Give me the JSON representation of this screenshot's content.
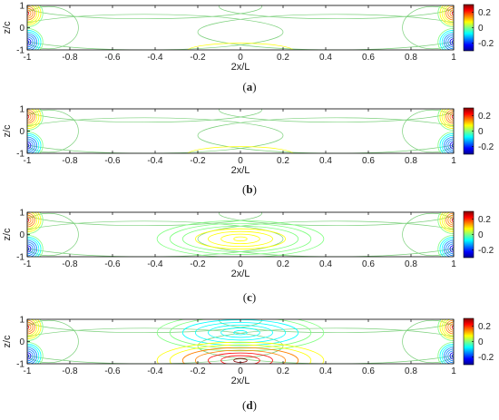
{
  "panels": [
    {
      "caption_letter": "a",
      "chart_data": {
        "type": "heatmap",
        "style": "contour lines",
        "xlabel": "2x/L",
        "ylabel": "z/c",
        "xlim": [
          -1,
          1
        ],
        "ylim": [
          -1,
          1
        ],
        "x_ticks": [
          "-1",
          "-0.8",
          "-0.6",
          "-0.4",
          "-0.2",
          "0",
          "0.2",
          "0.4",
          "0.6",
          "0.8",
          "1"
        ],
        "y_ticks": [
          "-1",
          "0",
          "1"
        ],
        "colorbar": {
          "ticks": [
            "0.2",
            "0",
            "-0.2"
          ],
          "range": [
            -0.3,
            0.3
          ]
        },
        "contours": [
          {
            "kind": "strong",
            "x": -1,
            "z": 0.65,
            "value": 0.2
          },
          {
            "kind": "strong",
            "x": -1,
            "z": -0.65,
            "value": -0.25
          },
          {
            "kind": "strong",
            "x": 1,
            "z": 0.65,
            "value": 0.2
          },
          {
            "kind": "strong",
            "x": 1,
            "z": -0.65,
            "value": -0.25
          },
          {
            "kind": "weak",
            "x": 0,
            "value": 0.0
          }
        ]
      }
    },
    {
      "caption_letter": "b",
      "chart_data": {
        "type": "heatmap",
        "style": "contour lines",
        "xlabel": "2x/L",
        "ylabel": "z/c",
        "xlim": [
          -1,
          1
        ],
        "ylim": [
          -1,
          1
        ],
        "x_ticks": [
          "-1",
          "-0.8",
          "-0.6",
          "-0.4",
          "-0.2",
          "0",
          "0.2",
          "0.4",
          "0.6",
          "0.8",
          "1"
        ],
        "y_ticks": [
          "-1",
          "0",
          "1"
        ],
        "colorbar": {
          "ticks": [
            "0.2",
            "0",
            "-0.2"
          ],
          "range": [
            -0.3,
            0.3
          ]
        },
        "contours": [
          {
            "kind": "strong",
            "x": -1,
            "z": 0.65,
            "value": 0.2
          },
          {
            "kind": "strong",
            "x": -1,
            "z": -0.65,
            "value": -0.25
          },
          {
            "kind": "strong",
            "x": 1,
            "z": 0.65,
            "value": 0.2
          },
          {
            "kind": "strong",
            "x": 1,
            "z": -0.65,
            "value": -0.25
          },
          {
            "kind": "weak",
            "x": 0,
            "value": 0.02
          }
        ]
      }
    },
    {
      "caption_letter": "c",
      "chart_data": {
        "type": "heatmap",
        "style": "contour lines",
        "xlabel": "2x/L",
        "ylabel": "z/c",
        "xlim": [
          -1,
          1
        ],
        "ylim": [
          -1,
          1
        ],
        "x_ticks": [
          "-1",
          "-0.8",
          "-0.6",
          "-0.4",
          "-0.2",
          "0",
          "0.2",
          "0.4",
          "0.6",
          "0.8",
          "1"
        ],
        "y_ticks": [
          "-1",
          "0",
          "1"
        ],
        "colorbar": {
          "ticks": [
            "0.2",
            "0",
            "-0.2"
          ],
          "range": [
            -0.3,
            0.3
          ]
        },
        "contours": [
          {
            "kind": "strong",
            "x": -1,
            "z": 0.65,
            "value": 0.2
          },
          {
            "kind": "strong",
            "x": -1,
            "z": -0.65,
            "value": -0.25
          },
          {
            "kind": "strong",
            "x": 1,
            "z": 0.65,
            "value": 0.2
          },
          {
            "kind": "strong",
            "x": 1,
            "z": -0.65,
            "value": -0.25
          },
          {
            "kind": "center",
            "x": 0,
            "z": -0.2,
            "value": 0.08
          }
        ]
      }
    },
    {
      "caption_letter": "d",
      "chart_data": {
        "type": "heatmap",
        "style": "contour lines",
        "xlabel": "2x/L",
        "ylabel": "z/c",
        "xlim": [
          -1,
          1
        ],
        "ylim": [
          -1,
          1
        ],
        "x_ticks": [
          "-1",
          "-0.8",
          "-0.6",
          "-0.4",
          "-0.2",
          "0",
          "0.2",
          "0.4",
          "0.6",
          "0.8",
          "1"
        ],
        "y_ticks": [
          "-1",
          "0",
          "1"
        ],
        "colorbar": {
          "ticks": [
            "0.2",
            "0",
            "-0.2"
          ],
          "range": [
            -0.3,
            0.3
          ]
        },
        "contours": [
          {
            "kind": "strong",
            "x": -1,
            "z": 0.65,
            "value": 0.2
          },
          {
            "kind": "strong",
            "x": -1,
            "z": -0.65,
            "value": -0.25
          },
          {
            "kind": "strong",
            "x": 1,
            "z": 0.65,
            "value": 0.2
          },
          {
            "kind": "strong",
            "x": 1,
            "z": -0.65,
            "value": -0.25
          },
          {
            "kind": "center",
            "x": 0,
            "z": 0.4,
            "value": -0.1
          },
          {
            "kind": "center",
            "x": 0,
            "z": -0.85,
            "value": 0.3
          }
        ]
      }
    }
  ],
  "colormap": [
    "#00008f",
    "#0000ff",
    "#0080ff",
    "#00ffff",
    "#80ff80",
    "#ffff00",
    "#ff8000",
    "#ff0000",
    "#800000"
  ]
}
